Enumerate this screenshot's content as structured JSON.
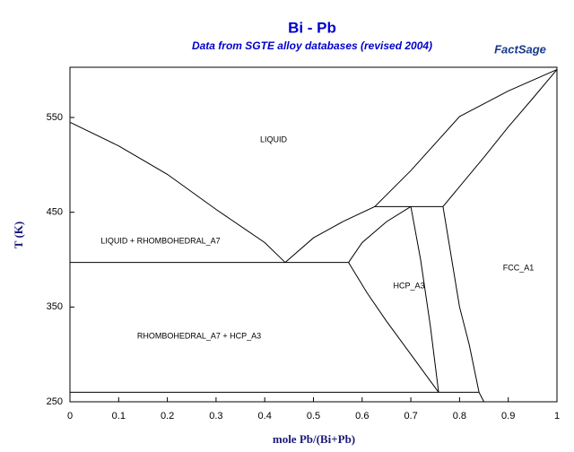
{
  "chart_data": {
    "type": "line",
    "title": "Bi - Pb",
    "subtitle": "Data from SGTE alloy databases (revised 2004)",
    "logo": "FactSage",
    "xlabel": "mole Pb/(Bi+Pb)",
    "ylabel": "T (K)",
    "color": "#000000",
    "xlim": [
      0,
      1
    ],
    "xticks": [
      0,
      0.1,
      0.2,
      0.3,
      0.4,
      0.5,
      0.6,
      0.7,
      0.8,
      0.9,
      1
    ],
    "ylim": [
      250,
      603
    ],
    "yticks": [
      250,
      350,
      450,
      550
    ],
    "annotations": [
      "LIQUID",
      "LIQUID + RHOMBOHEDRAL_A7",
      "HCP_A3",
      "FCC_A1",
      "RHOMBOHEDRAL_A7 + HCP_A3"
    ],
    "series": [
      {
        "x": [
          0,
          0.1,
          0.2,
          0.3,
          0.4,
          0.442
        ],
        "values": [
          545,
          520,
          490,
          453,
          418,
          397
        ]
      },
      {
        "x": [
          0,
          0.572
        ],
        "values": [
          397,
          397
        ]
      },
      {
        "x": [
          0.442,
          0.5,
          0.56,
          0.626,
          0.7,
          0.8,
          0.9,
          1
        ],
        "values": [
          397,
          423,
          440,
          456,
          494,
          551,
          578,
          600.6
        ]
      },
      {
        "x": [
          0.626,
          0.766
        ],
        "values": [
          456,
          456
        ]
      },
      {
        "x": [
          0.572,
          0.6,
          0.65,
          0.7
        ],
        "values": [
          397,
          418,
          440,
          456
        ]
      },
      {
        "x": [
          0.766,
          0.85,
          0.9,
          0.95,
          1
        ],
        "values": [
          456,
          508,
          540,
          570,
          600.6
        ]
      },
      {
        "x": [
          0.572,
          0.61,
          0.65,
          0.7,
          0.757
        ],
        "values": [
          397,
          365,
          335,
          300,
          260
        ]
      },
      {
        "x": [
          0.7,
          0.72,
          0.74,
          0.757
        ],
        "values": [
          456,
          400,
          330,
          260
        ]
      },
      {
        "x": [
          0.766,
          0.8,
          0.82,
          0.84,
          0.85
        ],
        "values": [
          456,
          350,
          310,
          260,
          250
        ]
      },
      {
        "x": [
          0,
          0.84
        ],
        "values": [
          260,
          260
        ]
      }
    ]
  }
}
